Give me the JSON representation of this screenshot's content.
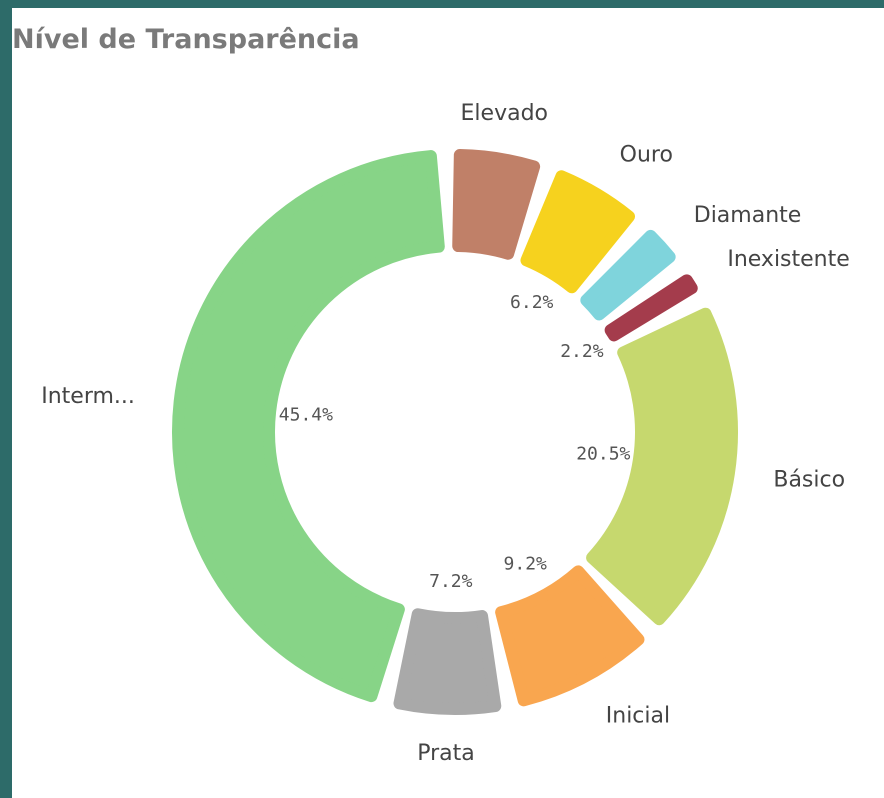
{
  "chart_data": {
    "type": "donut",
    "title": "Nível de Transparência",
    "categories": [
      "Elevado",
      "Ouro",
      "Diamante",
      "Inexistente",
      "Básico",
      "Inicial",
      "Prata",
      "Interm..."
    ],
    "values": [
      6.0,
      6.2,
      3.3,
      2.2,
      20.5,
      9.2,
      7.2,
      45.4
    ],
    "value_labels": [
      null,
      "6.2%",
      null,
      "2.2%",
      "20.5%",
      "9.2%",
      "7.2%",
      "45.4%"
    ],
    "colors": [
      "#c08068",
      "#f6d21e",
      "#7fd4dc",
      "#a43c4c",
      "#c6d86e",
      "#f9a64f",
      "#a9a9a9",
      "#87d487"
    ]
  }
}
